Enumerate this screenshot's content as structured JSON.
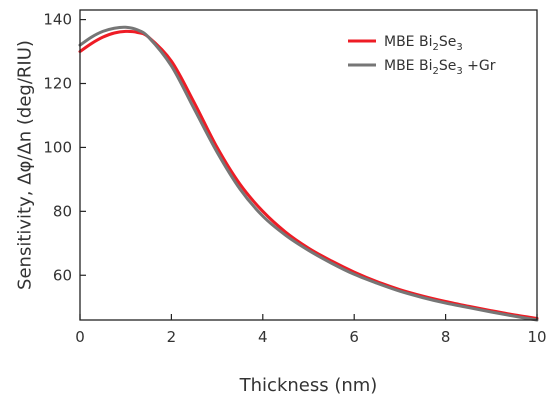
{
  "chart_data": {
    "type": "line",
    "title": "",
    "xlabel": "Thickness (nm)",
    "ylabel": "Sensitivity, Δφ/Δn (deg/RIU)",
    "xlim": [
      0,
      10
    ],
    "ylim": [
      46,
      143
    ],
    "xticks": [
      0,
      2,
      4,
      6,
      8,
      10
    ],
    "yticks": [
      60,
      80,
      100,
      120,
      140
    ],
    "grid": false,
    "legend": "top-right",
    "series": [
      {
        "name": "MBE Bi2Se3",
        "legend_parts": [
          "MBE Bi",
          "2",
          "Se",
          "3",
          ""
        ],
        "color": "#ee1c25",
        "x": [
          0,
          0.25,
          0.5,
          0.75,
          1.0,
          1.25,
          1.5,
          2.0,
          2.5,
          3.0,
          3.5,
          4.0,
          4.5,
          5.0,
          5.5,
          6.0,
          6.5,
          7.0,
          7.5,
          8.0,
          8.5,
          9.0,
          9.5,
          10.0
        ],
        "y": [
          130.0,
          132.5,
          134.5,
          135.8,
          136.3,
          136.0,
          134.5,
          127.0,
          114.0,
          100.0,
          88.5,
          80.0,
          73.5,
          68.5,
          64.5,
          61.0,
          58.0,
          55.5,
          53.5,
          51.8,
          50.3,
          48.9,
          47.6,
          46.5
        ]
      },
      {
        "name": "MBE Bi2Se3 +Gr",
        "legend_parts": [
          "MBE Bi",
          "2",
          "Se",
          "3",
          " +Gr"
        ],
        "color": "#767676",
        "x": [
          0,
          0.25,
          0.5,
          0.75,
          1.0,
          1.25,
          1.5,
          2.0,
          2.5,
          3.0,
          3.5,
          4.0,
          4.5,
          5.0,
          5.5,
          6.0,
          6.5,
          7.0,
          7.5,
          8.0,
          8.5,
          9.0,
          9.5,
          10.0
        ],
        "y": [
          132.0,
          134.5,
          136.3,
          137.3,
          137.6,
          136.8,
          134.5,
          125.5,
          112.0,
          98.5,
          87.0,
          78.5,
          72.5,
          67.8,
          63.8,
          60.3,
          57.5,
          55.0,
          53.0,
          51.3,
          49.9,
          48.5,
          47.2,
          46.0
        ]
      }
    ]
  }
}
